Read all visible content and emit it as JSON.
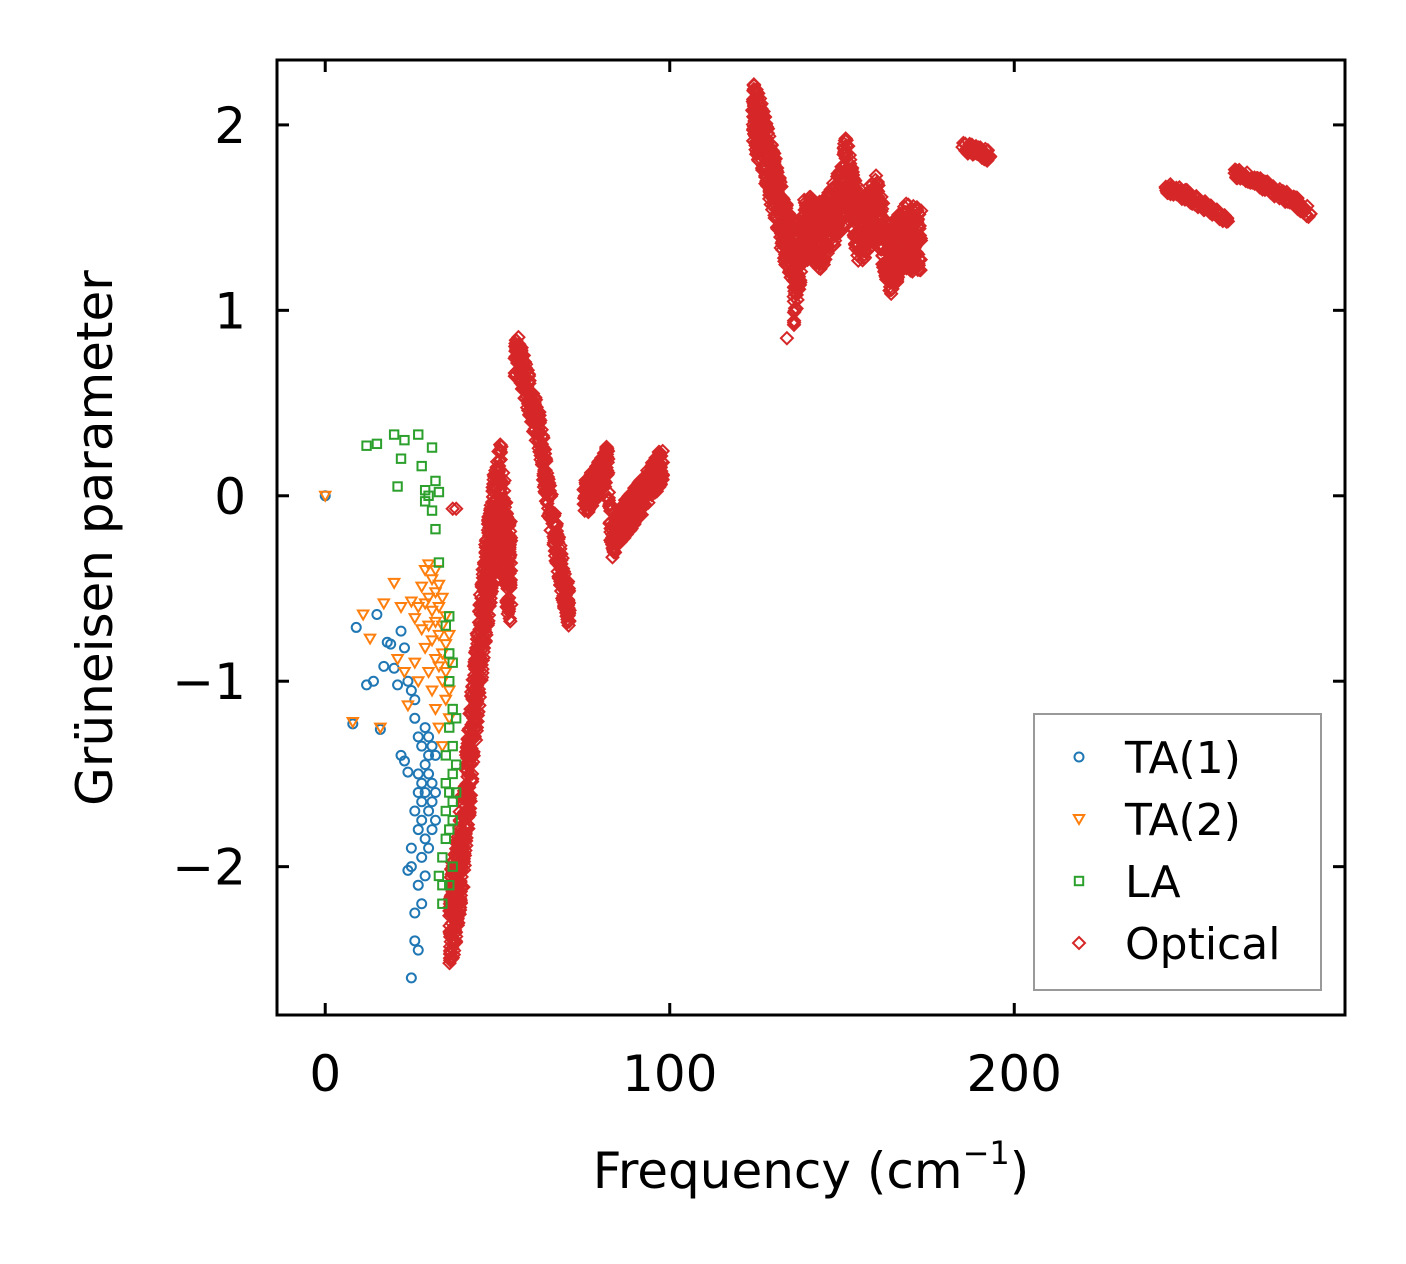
{
  "chart_data": {
    "type": "scatter",
    "title": "",
    "xlabel": "Frequency (cm",
    "xlabel_sup": "−1",
    "xlabel_end": ")",
    "ylabel": "Grüneisen parameter",
    "xlim": [
      -14,
      296
    ],
    "ylim": [
      -2.8,
      2.35
    ],
    "xticks": [
      0,
      100,
      200
    ],
    "xtick_labels": [
      "0",
      "100",
      "200"
    ],
    "yticks": [
      -2,
      -1,
      0,
      1,
      2
    ],
    "ytick_labels": [
      "−2",
      "−1",
      "0",
      "1",
      "2"
    ],
    "grid": false,
    "legend_position": "lower-right",
    "series": [
      {
        "name": "TA(1)",
        "marker": "circle",
        "color": "#1f77b4",
        "points": [
          [
            0,
            0
          ],
          [
            8,
            -1.23
          ],
          [
            9,
            -0.71
          ],
          [
            12,
            -1.02
          ],
          [
            14,
            -1.0
          ],
          [
            15,
            -0.64
          ],
          [
            16,
            -1.26
          ],
          [
            17,
            -0.92
          ],
          [
            18,
            -0.79
          ],
          [
            19,
            -0.8
          ],
          [
            20,
            -0.93
          ],
          [
            21,
            -1.02
          ],
          [
            22,
            -0.73
          ],
          [
            22,
            -1.4
          ],
          [
            23,
            -0.82
          ],
          [
            23,
            -1.43
          ],
          [
            24,
            -1.0
          ],
          [
            24,
            -2.02
          ],
          [
            24,
            -1.49
          ],
          [
            25,
            -2.6
          ],
          [
            25,
            -1.05
          ],
          [
            25,
            -1.9
          ],
          [
            25,
            -2.0
          ],
          [
            26,
            -1.1
          ],
          [
            26,
            -1.2
          ],
          [
            26,
            -1.7
          ],
          [
            26,
            -2.25
          ],
          [
            26,
            -2.4
          ],
          [
            27,
            -1.3
          ],
          [
            27,
            -1.5
          ],
          [
            27,
            -1.6
          ],
          [
            27,
            -1.8
          ],
          [
            27,
            -2.1
          ],
          [
            27,
            -2.45
          ],
          [
            28,
            -1.35
          ],
          [
            28,
            -1.55
          ],
          [
            28,
            -1.65
          ],
          [
            28,
            -1.75
          ],
          [
            28,
            -1.95
          ],
          [
            28,
            -2.2
          ],
          [
            29,
            -1.25
          ],
          [
            29,
            -1.45
          ],
          [
            29,
            -1.6
          ],
          [
            29,
            -1.85
          ],
          [
            29,
            -2.05
          ],
          [
            30,
            -1.3
          ],
          [
            30,
            -1.4
          ],
          [
            30,
            -1.5
          ],
          [
            30,
            -1.7
          ],
          [
            30,
            -1.9
          ],
          [
            31,
            -1.35
          ],
          [
            31,
            -1.55
          ],
          [
            31,
            -1.65
          ],
          [
            31,
            -1.8
          ],
          [
            32,
            -1.4
          ],
          [
            32,
            -1.6
          ],
          [
            32,
            -1.75
          ]
        ]
      },
      {
        "name": "TA(2)",
        "marker": "triangle-down",
        "color": "#ff7f0e",
        "points": [
          [
            0,
            0
          ],
          [
            8,
            -1.22
          ],
          [
            11,
            -0.64
          ],
          [
            13,
            -0.77
          ],
          [
            16,
            -1.25
          ],
          [
            17,
            -0.58
          ],
          [
            20,
            -0.47
          ],
          [
            21,
            -0.88
          ],
          [
            22,
            -0.6
          ],
          [
            23,
            -0.95
          ],
          [
            24,
            -1.13
          ],
          [
            25,
            -0.57
          ],
          [
            26,
            -0.66
          ],
          [
            26,
            -0.9
          ],
          [
            27,
            -0.6
          ],
          [
            27,
            -1.0
          ],
          [
            28,
            -0.49
          ],
          [
            28,
            -0.72
          ],
          [
            29,
            -0.4
          ],
          [
            29,
            -0.58
          ],
          [
            29,
            -0.82
          ],
          [
            30,
            -0.37
          ],
          [
            30,
            -0.55
          ],
          [
            30,
            -0.7
          ],
          [
            30,
            -0.95
          ],
          [
            31,
            -0.45
          ],
          [
            31,
            -0.62
          ],
          [
            31,
            -0.78
          ],
          [
            31,
            -1.05
          ],
          [
            32,
            -0.4
          ],
          [
            32,
            -0.52
          ],
          [
            32,
            -0.68
          ],
          [
            32,
            -0.88
          ],
          [
            32,
            -1.15
          ],
          [
            33,
            -0.48
          ],
          [
            33,
            -0.6
          ],
          [
            33,
            -0.75
          ],
          [
            33,
            -0.92
          ],
          [
            33,
            -1.25
          ],
          [
            34,
            -0.55
          ],
          [
            34,
            -0.7
          ],
          [
            34,
            -0.85
          ],
          [
            34,
            -1.0
          ],
          [
            34,
            -1.35
          ],
          [
            35,
            -0.65
          ],
          [
            35,
            -0.8
          ],
          [
            35,
            -0.95
          ],
          [
            35,
            -1.1
          ],
          [
            36,
            -0.75
          ],
          [
            36,
            -0.9
          ],
          [
            36,
            -1.05
          ],
          [
            36,
            -1.2
          ]
        ]
      },
      {
        "name": "LA",
        "marker": "square",
        "color": "#2ca02c",
        "points": [
          [
            12,
            0.27
          ],
          [
            15,
            0.28
          ],
          [
            20,
            0.33
          ],
          [
            21,
            0.05
          ],
          [
            22,
            0.2
          ],
          [
            23,
            0.3
          ],
          [
            27,
            0.33
          ],
          [
            28,
            0.16
          ],
          [
            29,
            0.03
          ],
          [
            29,
            -0.03
          ],
          [
            30,
            0.0
          ],
          [
            31,
            0.26
          ],
          [
            31,
            -0.08
          ],
          [
            32,
            0.08
          ],
          [
            32,
            -0.18
          ],
          [
            33,
            0.02
          ],
          [
            33,
            -0.36
          ],
          [
            33,
            -2.05
          ],
          [
            34,
            -1.95
          ],
          [
            34,
            -2.1
          ],
          [
            34,
            -2.2
          ],
          [
            35,
            -1.85
          ],
          [
            35,
            -1.7
          ],
          [
            35,
            -1.55
          ],
          [
            35,
            -1.4
          ],
          [
            35,
            -0.7
          ],
          [
            36,
            -0.65
          ],
          [
            36,
            -0.85
          ],
          [
            36,
            -1.0
          ],
          [
            36,
            -1.25
          ],
          [
            36,
            -1.6
          ],
          [
            36,
            -1.8
          ],
          [
            36,
            -2.1
          ],
          [
            37,
            -0.9
          ],
          [
            37,
            -1.15
          ],
          [
            37,
            -1.35
          ],
          [
            37,
            -1.5
          ],
          [
            37,
            -1.65
          ],
          [
            37,
            -1.75
          ],
          [
            37,
            -2.0
          ],
          [
            38,
            -1.2
          ],
          [
            38,
            -1.45
          ],
          [
            38,
            -1.6
          ]
        ]
      },
      {
        "name": "Optical",
        "marker": "diamond",
        "color": "#d62728",
        "clusters": [
          {
            "x": [
              36,
              54
            ],
            "ridge": [
              [
                37,
                -2.25
              ],
              [
                40,
                -1.85
              ],
              [
                43,
                -1.2
              ],
              [
                46,
                -0.6
              ],
              [
                49,
                -0.15
              ],
              [
                51,
                0.02
              ],
              [
                53,
                -0.4
              ]
            ],
            "spread": 0.28,
            "n": 900
          },
          {
            "x": [
              55,
              71
            ],
            "ridge": [
              [
                56,
                0.75
              ],
              [
                59,
                0.55
              ],
              [
                62,
                0.35
              ],
              [
                64,
                0.1
              ],
              [
                66,
                -0.15
              ],
              [
                68,
                -0.35
              ],
              [
                70,
                -0.58
              ]
            ],
            "spread": 0.12,
            "n": 350
          },
          {
            "x": [
              75,
              98
            ],
            "ridge": [
              [
                76,
                0.0
              ],
              [
                80,
                0.1
              ],
              [
                82,
                0.18
              ],
              [
                83,
                -0.25
              ],
              [
                86,
                -0.15
              ],
              [
                90,
                -0.05
              ],
              [
                94,
                0.05
              ],
              [
                98,
                0.18
              ]
            ],
            "spread": 0.1,
            "n": 500
          },
          {
            "x": [
              124,
              173
            ],
            "ridge": [
              [
                124,
                2.08
              ],
              [
                127,
                1.92
              ],
              [
                130,
                1.7
              ],
              [
                133,
                1.45
              ],
              [
                136,
                1.3
              ],
              [
                134,
                0.85
              ],
              [
                139,
                1.45
              ],
              [
                144,
                1.4
              ],
              [
                150,
                1.6
              ],
              [
                151,
                1.78
              ],
              [
                155,
                1.42
              ],
              [
                160,
                1.55
              ],
              [
                164,
                1.25
              ],
              [
                168,
                1.4
              ],
              [
                172,
                1.38
              ]
            ],
            "spread": 0.18,
            "n": 1400
          },
          {
            "x": [
              185,
              193
            ],
            "ridge": [
              [
                185,
                1.88
              ],
              [
                189,
                1.86
              ],
              [
                193,
                1.83
              ]
            ],
            "spread": 0.03,
            "n": 60
          },
          {
            "x": [
              244,
              262
            ],
            "ridge": [
              [
                244,
                1.66
              ],
              [
                250,
                1.62
              ],
              [
                256,
                1.56
              ],
              [
                262,
                1.48
              ]
            ],
            "spread": 0.03,
            "n": 120
          },
          {
            "x": [
              264,
              286
            ],
            "ridge": [
              [
                264,
                1.74
              ],
              [
                270,
                1.7
              ],
              [
                276,
                1.64
              ],
              [
                282,
                1.58
              ],
              [
                286,
                1.52
              ]
            ],
            "spread": 0.03,
            "n": 140
          },
          {
            "x": [
              37,
              37
            ],
            "ridge": [
              [
                38,
                -0.07
              ]
            ],
            "spread": 0.0,
            "n": 1
          }
        ]
      }
    ]
  }
}
